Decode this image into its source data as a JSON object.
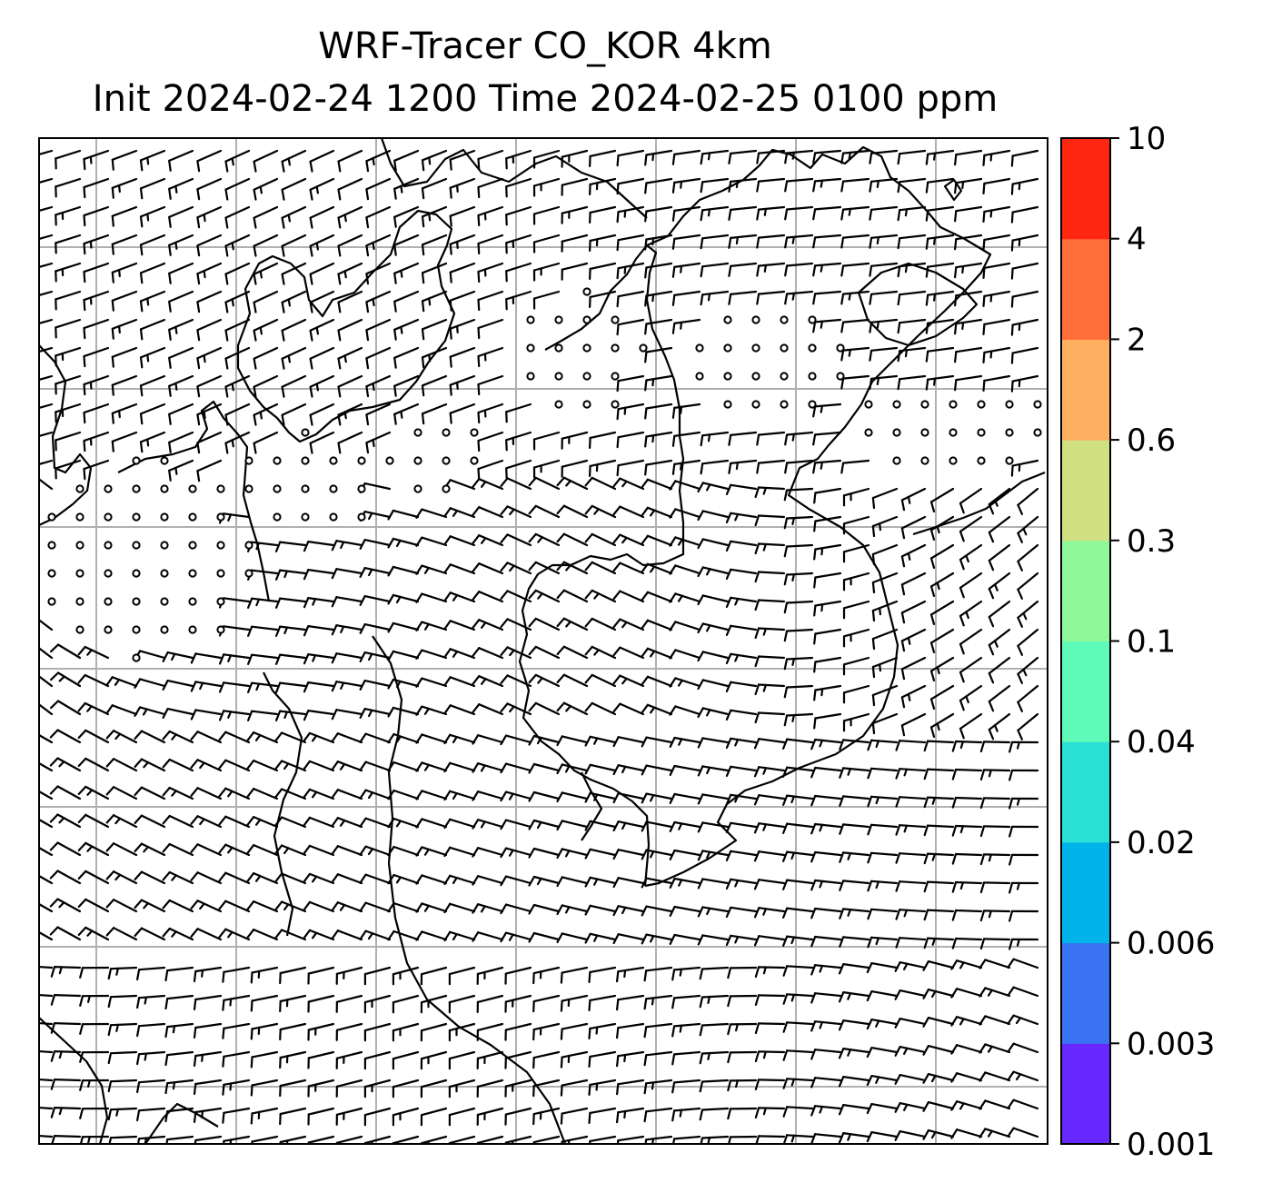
{
  "title": {
    "line1": "WRF-Tracer CO_KOR 4km",
    "line2": "Init 2024-02-24 1200 Time 2024-02-25 0100 ppm"
  },
  "colorbar": {
    "levels": [
      "0.001",
      "0.003",
      "0.006",
      "0.02",
      "0.04",
      "0.1",
      "0.3",
      "0.6",
      "2",
      "4",
      "10"
    ],
    "colors": [
      "#6628fe",
      "#3a72f4",
      "#00b3e8",
      "#2be0d4",
      "#5efab8",
      "#8ef99a",
      "#d0e081",
      "#ffaf60",
      "#ff6d3a",
      "#ff2612"
    ]
  },
  "map": {
    "gridlines": true,
    "gridline_color": "#b0b0b0",
    "coastline_color": "#000000",
    "barb_color": "#000000",
    "calm_marker": "circle"
  }
}
